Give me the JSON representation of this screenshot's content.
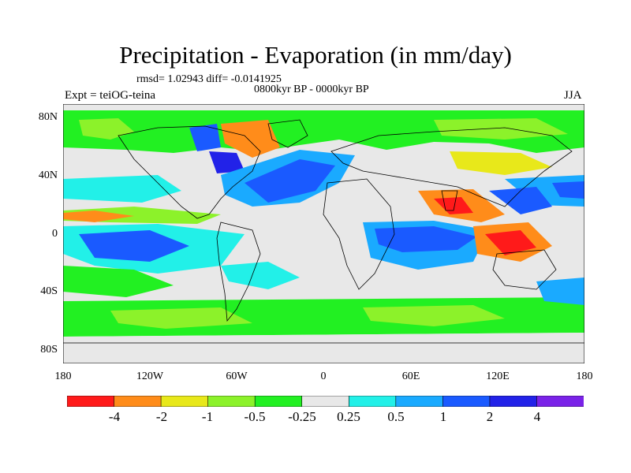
{
  "header": {
    "title": "Precipitation - Evaporation (in mm/day)",
    "stats": "rmsd= 1.02943 diff= -0.0141925",
    "subtitle": "0800kyr BP - 0000kyr BP",
    "experiment": "Expt = teiOG-teina",
    "season": "JJA"
  },
  "axes": {
    "y_ticks": [
      "80N",
      "40N",
      "0",
      "40S",
      "80S"
    ],
    "x_ticks": [
      "180",
      "120W",
      "60W",
      "0",
      "60E",
      "120E",
      "180"
    ]
  },
  "colorbar": {
    "colors": [
      "#ff1a1a",
      "#ff8c1a",
      "#e8e81a",
      "#8cf22a",
      "#22f022",
      "#e8e8e8",
      "#22f0e8",
      "#1aaaff",
      "#1a5aff",
      "#2222e8",
      "#7a22e8"
    ],
    "labels": [
      "-4",
      "-2",
      "-1",
      "-0.5",
      "-0.25",
      "0.25",
      "0.5",
      "1",
      "2",
      "4"
    ]
  }
}
